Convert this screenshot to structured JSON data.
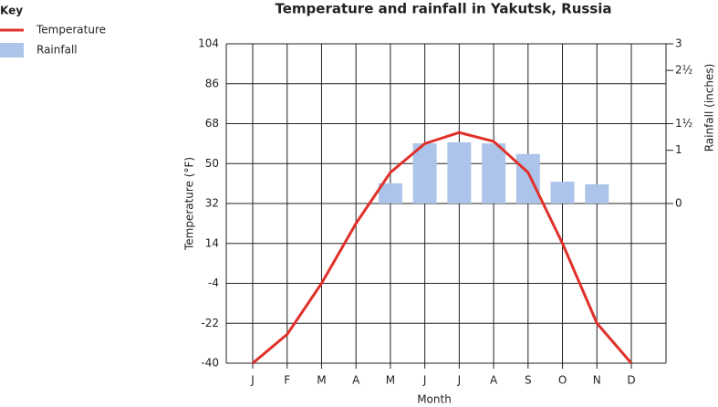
{
  "chart_data": {
    "type": "combo",
    "title": "Temperature and rainfall in Yakutsk, Russia",
    "legend_title": "Key",
    "x_label": "Month",
    "y_label": "Temperature (°F)",
    "y2_label": "Rainfall (inches)",
    "categories": [
      "J",
      "F",
      "M",
      "A",
      "M",
      "J",
      "J",
      "A",
      "S",
      "O",
      "N",
      "D"
    ],
    "series": [
      {
        "name": "Temperature",
        "type": "line",
        "color": "#e0302a",
        "axis": "y",
        "values": [
          -40,
          -27,
          -4,
          23,
          46,
          59,
          64,
          60,
          46,
          14,
          -22,
          -40
        ]
      },
      {
        "name": "Rainfall",
        "type": "bar",
        "color": "#adc4ea",
        "axis": "y2",
        "values": [
          null,
          null,
          null,
          null,
          0.38,
          1.13,
          1.15,
          1.13,
          0.93,
          0.41,
          0.36,
          null
        ]
      }
    ],
    "ylim": [
      -40,
      104
    ],
    "yticks": [
      -40,
      -22,
      -4,
      14,
      32,
      50,
      68,
      86,
      104
    ],
    "y2lim": [
      -3,
      3
    ],
    "y2ticks": [
      0,
      1,
      {
        "value": 1.5,
        "label": "1½"
      },
      {
        "value": 2.5,
        "label": "2½"
      },
      3
    ],
    "grid": true,
    "legend": "top-left"
  }
}
